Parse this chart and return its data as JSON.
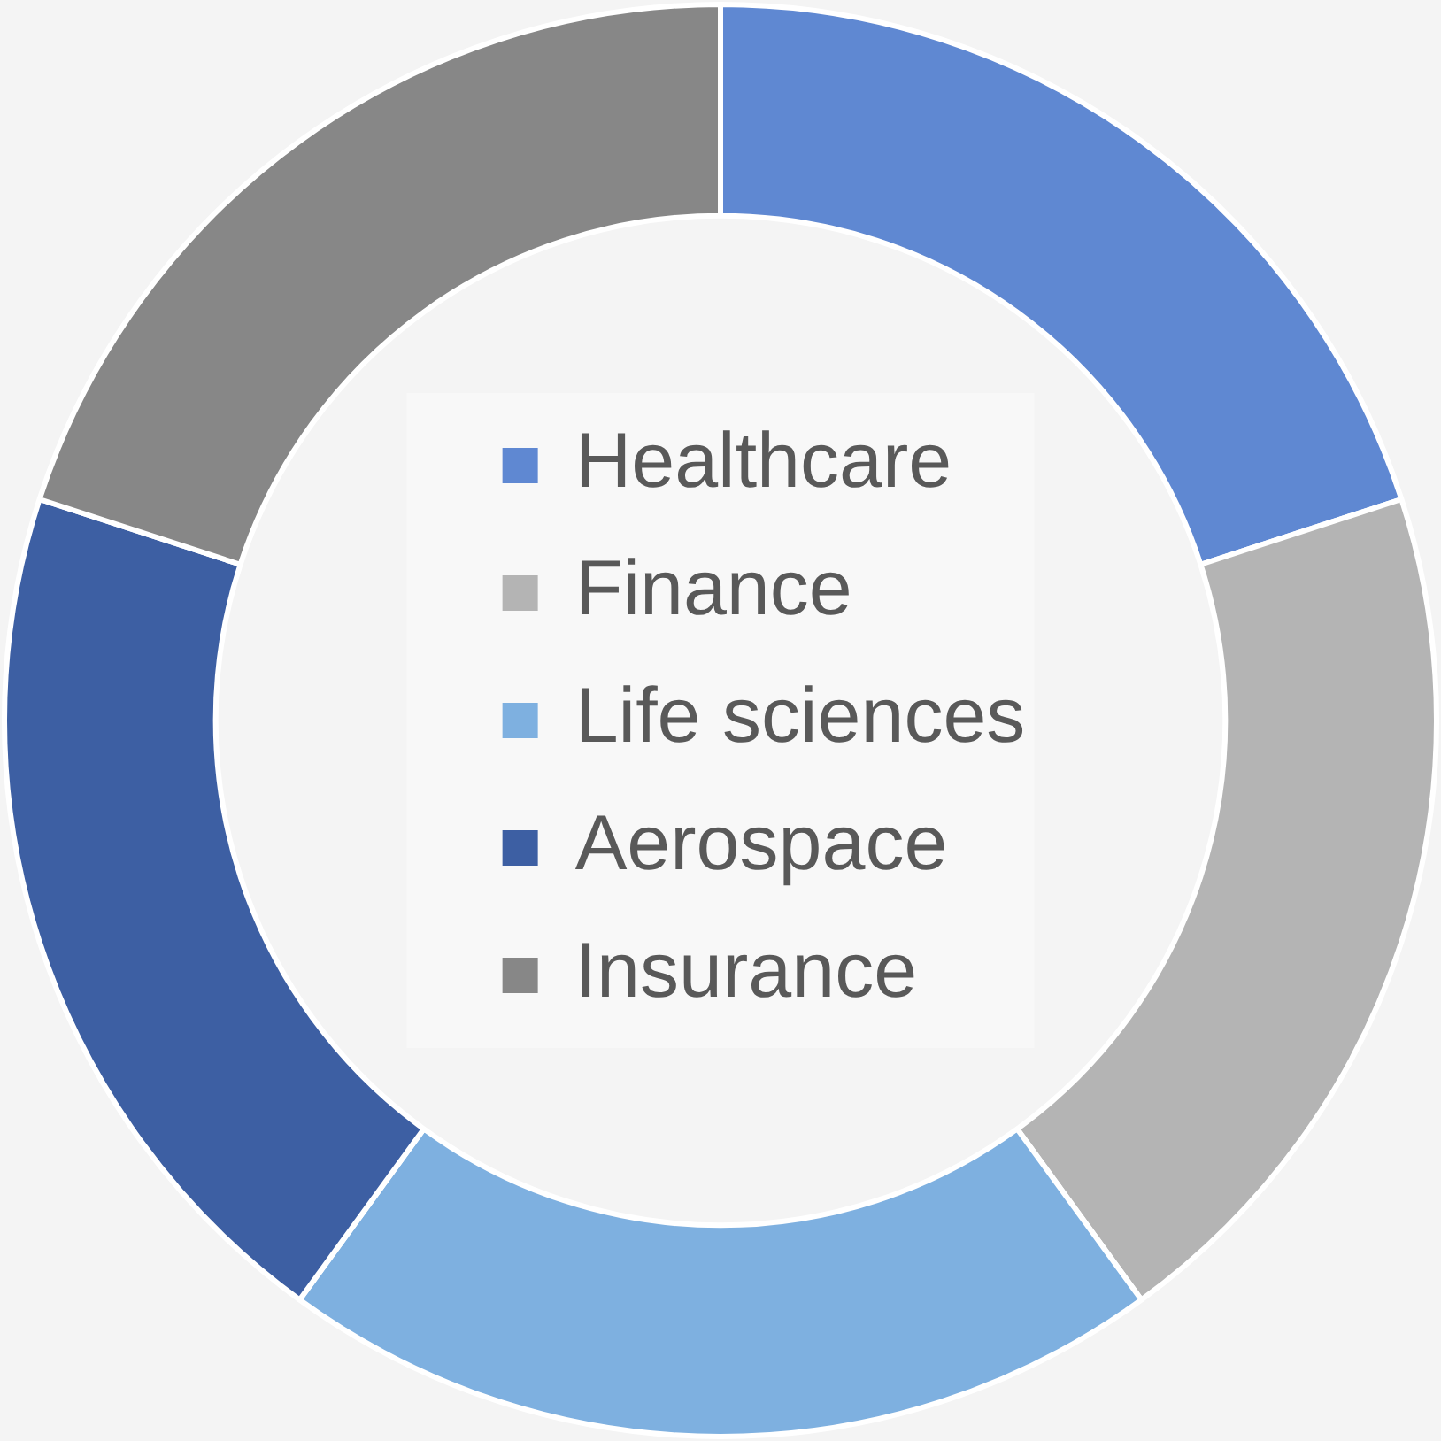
{
  "chart_data": {
    "type": "donut",
    "categories": [
      "Healthcare",
      "Finance",
      "Life sciences",
      "Aerospace",
      "Insurance"
    ],
    "values": [
      20,
      20,
      20,
      20,
      20
    ],
    "colors": [
      "#5f88d2",
      "#b4b4b4",
      "#7eb0e0",
      "#3d5fa3",
      "#878787"
    ],
    "legend": "center"
  }
}
